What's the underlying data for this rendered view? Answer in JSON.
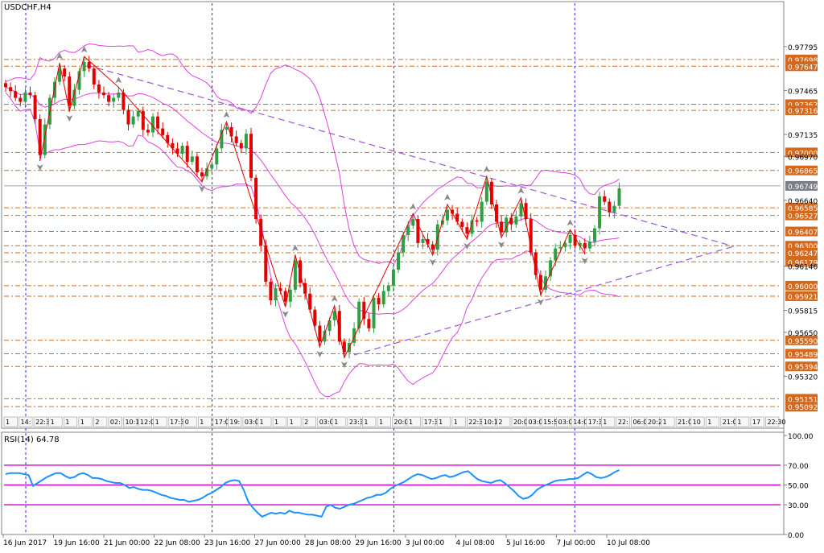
{
  "title": "USDCHF,H4",
  "chart_data": [
    {
      "type": "candlestick",
      "symbol": "USDCHF",
      "timeframe": "H4",
      "ylim": [
        0.9493,
        0.9812
      ],
      "y_ticks": [
        0.97795,
        0.97465,
        0.97135,
        0.9697,
        0.9664,
        0.96146,
        0.95815,
        0.9565,
        0.9532
      ],
      "current_price": {
        "value": 0.96749,
        "label": "0.96749"
      },
      "level_lines": [
        {
          "value": 0.97698,
          "label": "0.97698"
        },
        {
          "value": 0.97647,
          "label": "0.97647"
        },
        {
          "value": 0.97362,
          "label": "0.97362"
        },
        {
          "value": 0.97316,
          "label": "0.97316"
        },
        {
          "value": 0.97,
          "label": "0.97000"
        },
        {
          "value": 0.96865,
          "label": "0.96865"
        },
        {
          "value": 0.96585,
          "label": "0.96585"
        },
        {
          "value": 0.96527,
          "label": "0.96527"
        },
        {
          "value": 0.96407,
          "label": "0.96407"
        },
        {
          "value": 0.963,
          "label": "0.96300"
        },
        {
          "value": 0.96247,
          "label": "0.96247"
        },
        {
          "value": 0.96179,
          "label": "0.96179"
        },
        {
          "value": 0.96,
          "label": "0.96000"
        },
        {
          "value": 0.95921,
          "label": "0.95921"
        },
        {
          "value": 0.9559,
          "label": "0.95590"
        },
        {
          "value": 0.95489,
          "label": "0.95489"
        },
        {
          "value": 0.95394,
          "label": "0.95394"
        },
        {
          "value": 0.95151,
          "label": "0.95151"
        },
        {
          "value": 0.95092,
          "label": "0.95092"
        }
      ],
      "x_labels": [
        "16 Jun 2017",
        "19 Jun 16:00",
        "21 Jun 00:00",
        "22 Jun 08:00",
        "23 Jun 16:00",
        "27 Jun 00:00",
        "28 Jun 08:00",
        "29 Jun 16:00",
        "3 Jul 00:00",
        "4 Jul 08:00",
        "5 Jul 16:00",
        "7 Jul 00:00",
        "10 Jul 08:00"
      ],
      "session_time_labels": [
        "1",
        "14:",
        "22:3(",
        "1",
        "1",
        "1",
        "2",
        "02:",
        "10:15",
        "12:00",
        "1",
        "17:30",
        "0",
        "1",
        "17:00",
        "19:",
        "03:00",
        "1",
        "1",
        "1",
        "2",
        "03:00",
        "1",
        "23:30",
        "1",
        "1",
        "20:00",
        "1",
        "17:30",
        "1",
        "1",
        "22:30",
        "10:1",
        "2",
        "20:00",
        "03:00",
        "15:55",
        "03:00",
        "14:00",
        "17:30",
        "1",
        "22:",
        "06:05",
        "20:20",
        "1",
        "21:00",
        "10",
        "1",
        "21:00",
        "1",
        "17",
        "22:30"
      ],
      "close": [
        0.9749,
        0.9746,
        0.9741,
        0.9738,
        0.9745,
        0.9743,
        0.9725,
        0.9698,
        0.9721,
        0.9741,
        0.9753,
        0.9763,
        0.9757,
        0.9735,
        0.9747,
        0.9761,
        0.9768,
        0.9763,
        0.9751,
        0.9745,
        0.9743,
        0.9738,
        0.9741,
        0.9745,
        0.9732,
        0.9721,
        0.9727,
        0.9731,
        0.9717,
        0.9715,
        0.9727,
        0.9718,
        0.9713,
        0.9707,
        0.9703,
        0.9699,
        0.9705,
        0.9693,
        0.9697,
        0.9685,
        0.9682,
        0.9688,
        0.9691,
        0.9703,
        0.9717,
        0.9719,
        0.9712,
        0.9707,
        0.9703,
        0.9714,
        0.9681,
        0.965,
        0.963,
        0.9603,
        0.9589,
        0.9598,
        0.9596,
        0.9588,
        0.9597,
        0.9619,
        0.9602,
        0.9594,
        0.9582,
        0.957,
        0.9558,
        0.9566,
        0.9574,
        0.9581,
        0.9558,
        0.955,
        0.9557,
        0.9568,
        0.9588,
        0.9575,
        0.9568,
        0.9591,
        0.9586,
        0.9596,
        0.96,
        0.9612,
        0.9625,
        0.9638,
        0.9645,
        0.965,
        0.9632,
        0.9635,
        0.9631,
        0.9627,
        0.9646,
        0.9649,
        0.9657,
        0.9654,
        0.9648,
        0.9644,
        0.9639,
        0.9649,
        0.9648,
        0.9663,
        0.9678,
        0.9661,
        0.9648,
        0.964,
        0.9651,
        0.9646,
        0.9652,
        0.9662,
        0.965,
        0.9625,
        0.9608,
        0.9597,
        0.9607,
        0.9619,
        0.9628,
        0.9629,
        0.9632,
        0.9638,
        0.963,
        0.9632,
        0.9628,
        0.9633,
        0.9643,
        0.9667,
        0.9663,
        0.9655,
        0.966,
        0.9673
      ],
      "overlays": [
        "Bollinger Bands (magenta)",
        "ZigZag (red)",
        "Fractals (grey arrows)",
        "Triangle trendlines (purple dashed)"
      ],
      "colors": {
        "bull": "#2f9e44",
        "bear": "#e00000",
        "bands": "#e040e0",
        "zigzag": "#e00000",
        "trendline": "#9b59d6",
        "levels": "#d2691e",
        "axis": "#0b5394",
        "session_line": "#2b2bd6"
      }
    },
    {
      "type": "line",
      "title": "RSI(14) 64.78",
      "ylim": [
        0,
        100
      ],
      "y_ticks": [
        100.0,
        70.0,
        50.0,
        30.0,
        0.0
      ],
      "levels": [
        70,
        50,
        30
      ],
      "values": [
        61,
        62,
        62,
        62,
        61,
        60,
        49,
        52,
        55,
        58,
        60,
        62,
        62,
        59,
        57,
        58,
        61,
        62,
        60,
        57,
        57,
        56,
        54,
        53,
        52,
        52,
        50,
        47,
        48,
        46,
        45,
        45,
        44,
        42,
        40,
        39,
        37,
        36,
        35,
        35,
        33,
        34,
        35,
        37,
        40,
        42,
        45,
        48,
        52,
        54,
        55,
        54,
        45,
        33,
        27,
        22,
        18,
        20,
        22,
        21,
        22,
        21,
        24,
        22,
        22,
        21,
        20,
        20,
        19,
        18,
        28,
        30,
        27,
        26,
        28,
        30,
        31,
        33,
        35,
        37,
        38,
        40,
        40,
        42,
        46,
        49,
        51,
        53,
        56,
        59,
        61,
        60,
        58,
        56,
        57,
        59,
        60,
        58,
        59,
        61,
        63,
        64,
        60,
        56,
        54,
        53,
        52,
        54,
        55,
        52,
        48,
        44,
        39,
        36,
        37,
        40,
        45,
        48,
        50,
        52,
        54,
        55,
        55,
        56,
        56,
        57,
        60,
        63,
        61,
        58,
        57,
        58,
        60,
        63,
        65
      ]
    }
  ]
}
